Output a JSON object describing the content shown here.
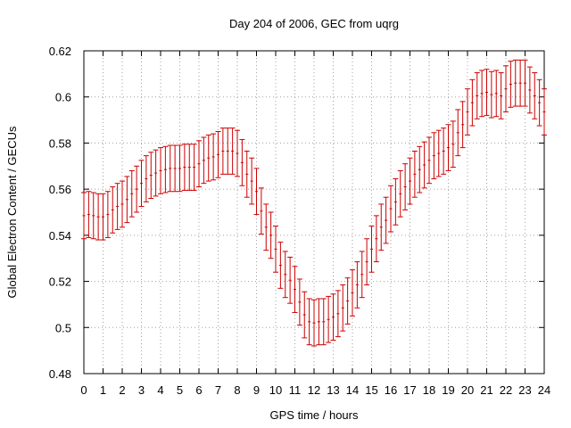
{
  "chart_data": {
    "type": "line",
    "title": "Day 204 of 2006, GEC from uqrg",
    "xlabel": "GPS time / hours",
    "ylabel": "Global Electron Content / GECUs",
    "xlim": [
      0,
      24
    ],
    "ylim": [
      0.48,
      0.62
    ],
    "grid": true,
    "x_ticks": [
      0,
      1,
      2,
      3,
      4,
      5,
      6,
      7,
      8,
      9,
      10,
      11,
      12,
      13,
      14,
      15,
      16,
      17,
      18,
      19,
      20,
      21,
      22,
      23,
      24
    ],
    "y_ticks": [
      0.48,
      0.5,
      0.52,
      0.54,
      0.56,
      0.58,
      0.6,
      0.62
    ],
    "y_tick_labels": [
      "0.48",
      "0.5",
      "0.52",
      "0.54",
      "0.56",
      "0.58",
      "0.6",
      "0.62"
    ],
    "x_tick_labels": [
      "0",
      "1",
      "2",
      "3",
      "4",
      "5",
      "6",
      "7",
      "8",
      "9",
      "10",
      "11",
      "12",
      "13",
      "14",
      "15",
      "16",
      "17",
      "18",
      "19",
      "20",
      "21",
      "22",
      "23",
      "24"
    ],
    "series": [
      {
        "name": "GEC",
        "style": "errorbars",
        "color": "#cc0000",
        "error": 0.01,
        "x": [
          0,
          0.25,
          0.5,
          0.75,
          1,
          1.25,
          1.5,
          1.75,
          2,
          2.25,
          2.5,
          2.75,
          3,
          3.25,
          3.5,
          3.75,
          4,
          4.25,
          4.5,
          4.75,
          5,
          5.25,
          5.5,
          5.75,
          6,
          6.25,
          6.5,
          6.75,
          7,
          7.25,
          7.5,
          7.75,
          8,
          8.25,
          8.5,
          8.75,
          9,
          9.25,
          9.5,
          9.75,
          10,
          10.25,
          10.5,
          10.75,
          11,
          11.25,
          11.5,
          11.75,
          12,
          12.25,
          12.5,
          12.75,
          13,
          13.25,
          13.5,
          13.75,
          14,
          14.25,
          14.5,
          14.75,
          15,
          15.25,
          15.5,
          15.75,
          16,
          16.25,
          16.5,
          16.75,
          17,
          17.25,
          17.5,
          17.75,
          18,
          18.25,
          18.5,
          18.75,
          19,
          19.25,
          19.5,
          19.75,
          20,
          20.25,
          20.5,
          20.75,
          21,
          21.25,
          21.5,
          21.75,
          22,
          22.25,
          22.5,
          22.75,
          23,
          23.25,
          23.5,
          23.75,
          24
        ],
        "values": [
          0.5485,
          0.549,
          0.5485,
          0.548,
          0.548,
          0.549,
          0.551,
          0.5525,
          0.5535,
          0.5555,
          0.558,
          0.56,
          0.5625,
          0.5645,
          0.566,
          0.567,
          0.568,
          0.5685,
          0.569,
          0.569,
          0.569,
          0.5695,
          0.5695,
          0.5695,
          0.571,
          0.5725,
          0.5735,
          0.574,
          0.575,
          0.5765,
          0.5765,
          0.5765,
          0.5755,
          0.5715,
          0.5665,
          0.5635,
          0.559,
          0.5505,
          0.5435,
          0.54,
          0.534,
          0.527,
          0.523,
          0.5205,
          0.5165,
          0.511,
          0.5055,
          0.5025,
          0.502,
          0.5025,
          0.5025,
          0.5035,
          0.5045,
          0.506,
          0.5085,
          0.5115,
          0.515,
          0.5185,
          0.523,
          0.5285,
          0.534,
          0.5385,
          0.5435,
          0.5465,
          0.5515,
          0.5545,
          0.558,
          0.561,
          0.5635,
          0.5665,
          0.5685,
          0.5705,
          0.5725,
          0.5745,
          0.5755,
          0.5765,
          0.578,
          0.5795,
          0.5845,
          0.588,
          0.5935,
          0.5975,
          0.6005,
          0.6015,
          0.602,
          0.601,
          0.6015,
          0.6005,
          0.6035,
          0.6055,
          0.606,
          0.606,
          0.606,
          0.603,
          0.6005,
          0.5975,
          0.5935
        ]
      }
    ]
  }
}
